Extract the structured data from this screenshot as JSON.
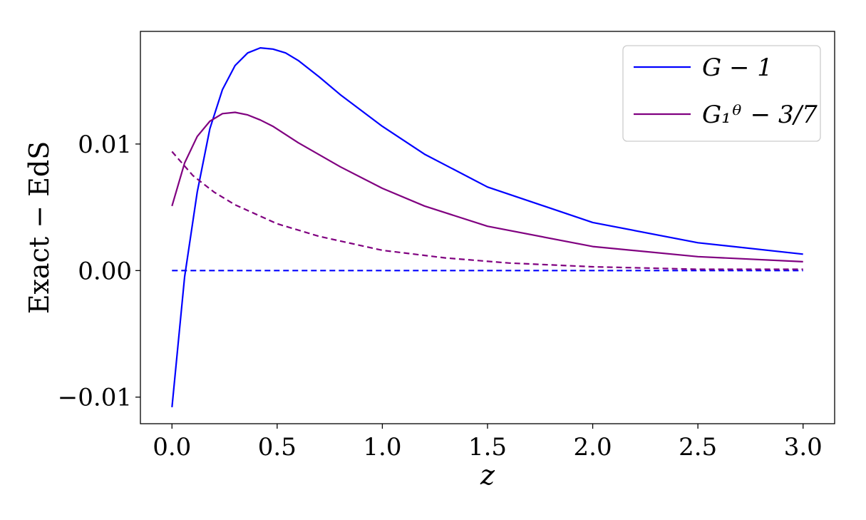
{
  "chart_data": {
    "type": "line",
    "xlabel": "z",
    "ylabel": "Exact − EdS",
    "xlim": [
      -0.15,
      3.15
    ],
    "ylim": [
      -0.0121,
      0.0189
    ],
    "xticks": [
      0.0,
      0.5,
      1.0,
      1.5,
      2.0,
      2.5,
      3.0
    ],
    "xtick_labels": [
      "0.0",
      "0.5",
      "1.0",
      "1.5",
      "2.0",
      "2.5",
      "3.0"
    ],
    "yticks": [
      -0.01,
      0.0,
      0.01
    ],
    "ytick_labels": [
      "−0.01",
      "0.00",
      "0.01"
    ],
    "grid": false,
    "legend_position": "top-right",
    "series": [
      {
        "name": "G − 1",
        "color": "#0000ff",
        "dash": "solid",
        "in_legend": true,
        "x": [
          0.0,
          0.06,
          0.12,
          0.18,
          0.24,
          0.3,
          0.36,
          0.42,
          0.48,
          0.54,
          0.6,
          0.7,
          0.8,
          1.0,
          1.2,
          1.5,
          2.0,
          2.5,
          3.0
        ],
        "y": [
          -0.0108,
          -0.0005,
          0.0062,
          0.0112,
          0.0143,
          0.0162,
          0.0172,
          0.0176,
          0.0175,
          0.0172,
          0.0166,
          0.0153,
          0.0139,
          0.0114,
          0.0092,
          0.0066,
          0.0038,
          0.0022,
          0.0013
        ]
      },
      {
        "name": "G₁ᶿ − 3/7",
        "color": "#800080",
        "dash": "solid",
        "in_legend": true,
        "x": [
          0.0,
          0.06,
          0.12,
          0.18,
          0.24,
          0.3,
          0.36,
          0.42,
          0.48,
          0.6,
          0.8,
          1.0,
          1.2,
          1.5,
          2.0,
          2.5,
          3.0
        ],
        "y": [
          0.0051,
          0.0085,
          0.0106,
          0.0118,
          0.0124,
          0.0125,
          0.0123,
          0.0119,
          0.0114,
          0.0101,
          0.0082,
          0.0065,
          0.0051,
          0.0035,
          0.0019,
          0.0011,
          0.0007
        ]
      },
      {
        "name": "",
        "color": "#0000ff",
        "dash": "dashed",
        "in_legend": false,
        "x": [
          0.0,
          3.0
        ],
        "y": [
          0.0,
          0.0
        ]
      },
      {
        "name": "",
        "color": "#800080",
        "dash": "dashed",
        "in_legend": false,
        "x": [
          0.0,
          0.1,
          0.2,
          0.3,
          0.5,
          0.7,
          1.0,
          1.3,
          1.6,
          2.0,
          2.5,
          3.0
        ],
        "y": [
          0.0094,
          0.0075,
          0.0062,
          0.0052,
          0.0037,
          0.0027,
          0.0016,
          0.001,
          0.0006,
          0.0003,
          0.0001,
          0.0001
        ]
      }
    ]
  }
}
